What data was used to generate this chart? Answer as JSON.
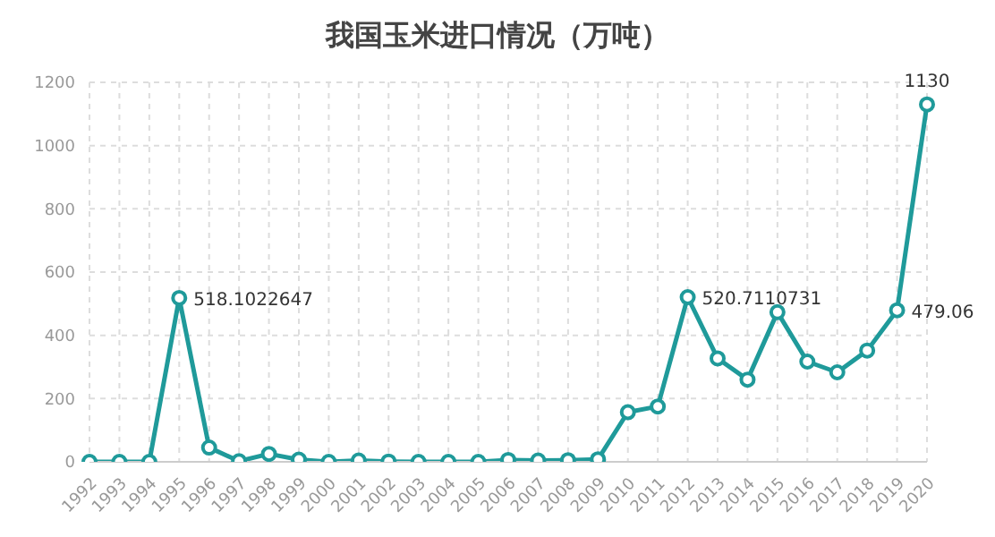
{
  "chart_data": {
    "type": "line",
    "title": "我国玉米进口情况（万吨）",
    "categories": [
      "1992",
      "1993",
      "1994",
      "1995",
      "1996",
      "1997",
      "1998",
      "1999",
      "2000",
      "2001",
      "2002",
      "2003",
      "2004",
      "2005",
      "2006",
      "2007",
      "2008",
      "2009",
      "2010",
      "2011",
      "2012",
      "2013",
      "2014",
      "2015",
      "2016",
      "2017",
      "2018",
      "2019",
      "2020"
    ],
    "values": [
      0,
      0,
      0,
      518.1022647,
      45,
      2,
      25,
      7,
      0,
      4,
      1,
      0,
      0,
      0,
      6,
      4,
      5,
      8,
      157,
      175,
      520.7110731,
      327,
      260,
      473,
      317,
      283,
      352,
      479.06,
      1130
    ],
    "value_labels": [
      null,
      null,
      null,
      "518.1022647",
      null,
      null,
      null,
      null,
      null,
      null,
      null,
      null,
      null,
      null,
      null,
      null,
      null,
      null,
      null,
      null,
      "520.7110731",
      null,
      null,
      null,
      null,
      null,
      null,
      "479.06",
      "1130"
    ],
    "color": "#1f9a9a",
    "ylim": [
      0,
      1200
    ],
    "yticks": [
      0,
      200,
      400,
      600,
      800,
      1000,
      1200
    ],
    "grid": true,
    "marker": "circle",
    "line_style": "solid"
  }
}
